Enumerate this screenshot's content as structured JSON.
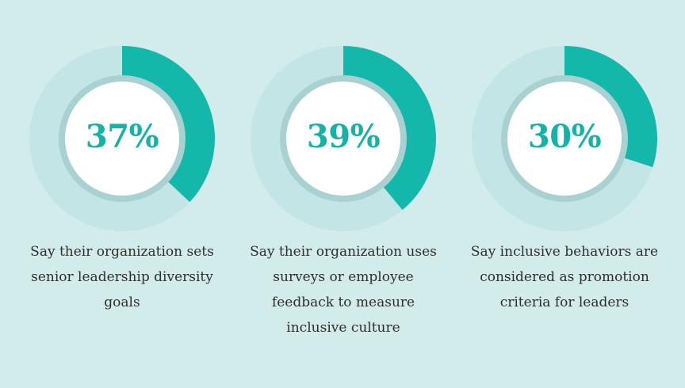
{
  "chart_data": [
    {
      "type": "pie",
      "value": 37,
      "max": 100,
      "label": "37%",
      "caption": [
        "Say their organization sets",
        "senior leadership diversity",
        "goals"
      ]
    },
    {
      "type": "pie",
      "value": 39,
      "max": 100,
      "label": "39%",
      "caption": [
        "Say their organization uses",
        "surveys or employee",
        "feedback to measure",
        "inclusive culture"
      ]
    },
    {
      "type": "pie",
      "value": 30,
      "max": 100,
      "label": "30%",
      "caption": [
        "Say inclusive behaviors are",
        "considered as promotion",
        "criteria for leaders"
      ]
    }
  ],
  "colors": {
    "background": "#d2ecec",
    "track": "#c3e5e5",
    "accent": "#14b8aa",
    "inner_ring": "#a9d1d2",
    "center": "#ffffff",
    "text": "#2e2e2e"
  }
}
